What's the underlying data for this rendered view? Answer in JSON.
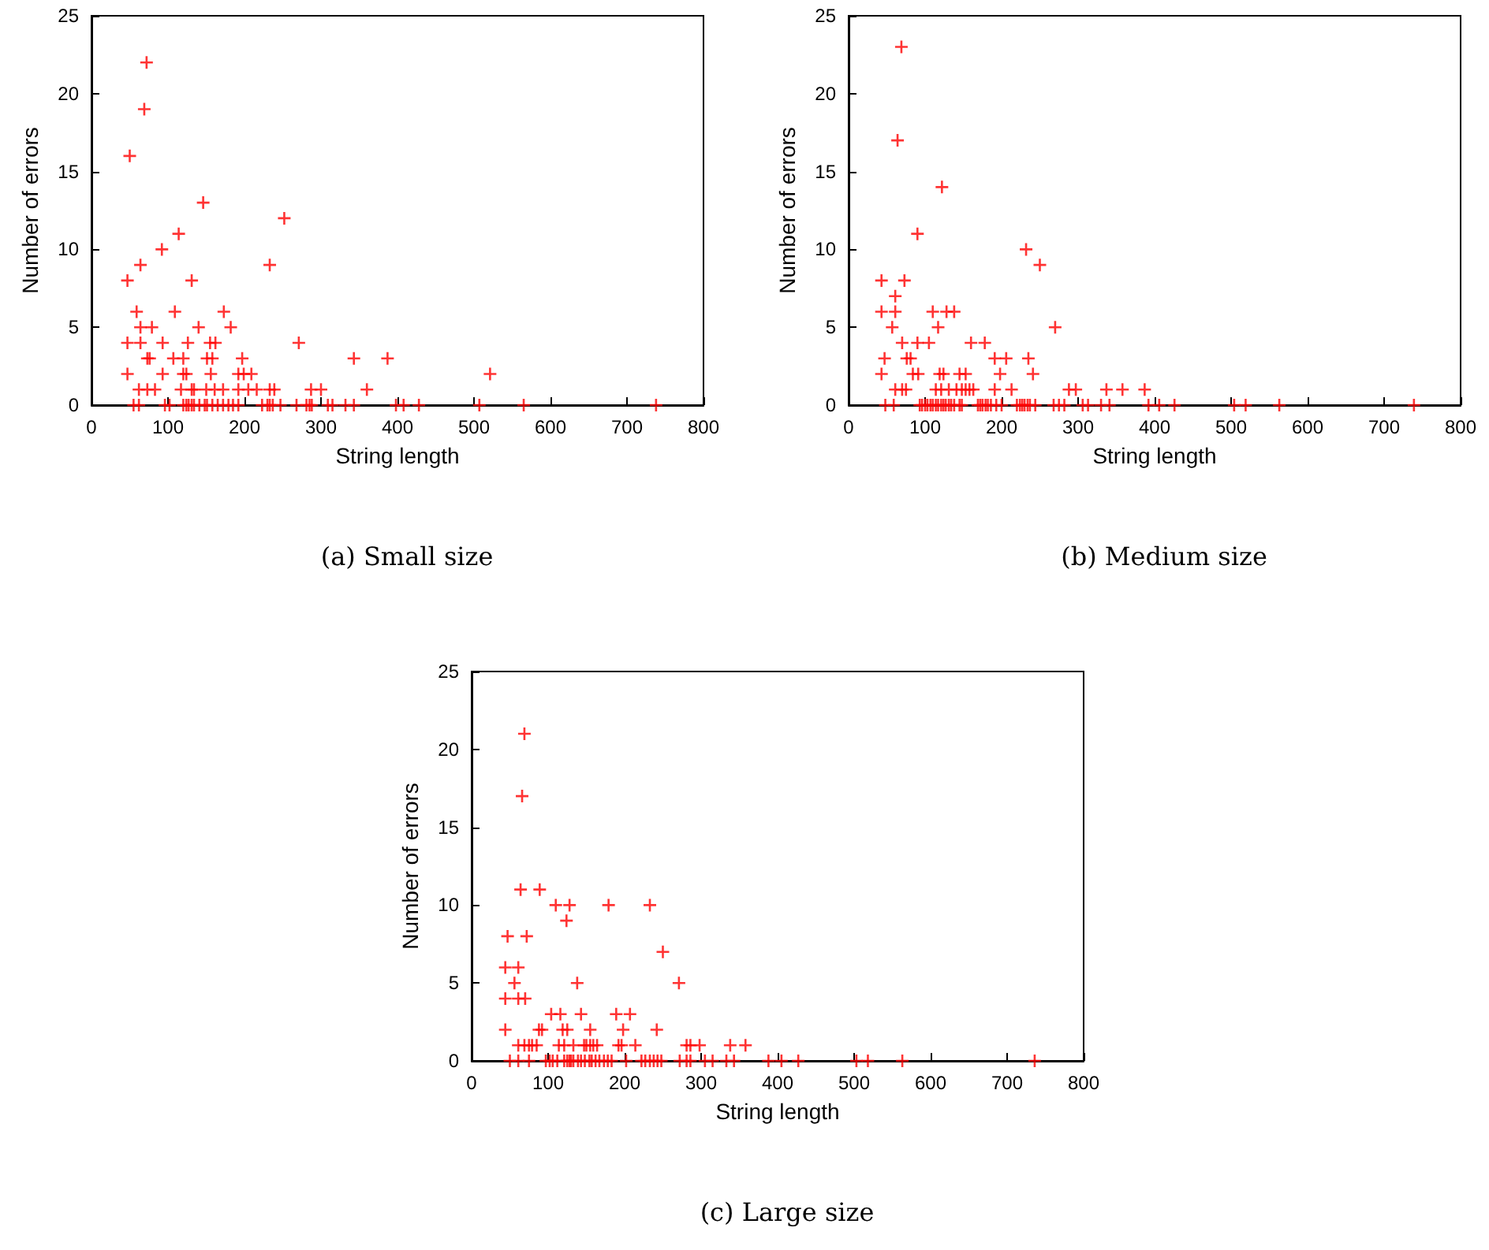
{
  "chart_data": [
    {
      "type": "scatter",
      "title": "(a) Small size",
      "xlabel": "String length",
      "ylabel": "Number of errors",
      "xlim": [
        0,
        800
      ],
      "xticks": [
        0,
        100,
        200,
        300,
        400,
        500,
        600,
        700,
        800
      ],
      "ylim": [
        0,
        25
      ],
      "yticks": [
        0,
        5,
        10,
        15,
        20,
        25
      ],
      "marker": "cross",
      "grid": false,
      "series": [
        {
          "color": "#ff0000",
          "x": [
            72,
            69,
            50,
            146,
            252,
            114,
            92,
            64,
            233,
            47,
            131,
            59,
            109,
            173,
            64,
            79,
            140,
            182,
            47,
            64,
            93,
            126,
            155,
            162,
            271,
            73,
            76,
            107,
            120,
            151,
            158,
            197,
            343,
            387,
            47,
            93,
            120,
            124,
            156,
            192,
            199,
            209,
            521,
            62,
            73,
            83,
            117,
            131,
            134,
            150,
            161,
            172,
            192,
            205,
            216,
            233,
            239,
            287,
            300,
            360,
            55,
            62,
            96,
            102,
            120,
            124,
            127,
            131,
            134,
            141,
            148,
            151,
            158,
            165,
            172,
            179,
            185,
            192,
            223,
            230,
            233,
            237,
            247,
            268,
            281,
            285,
            288,
            309,
            315,
            332,
            343,
            398,
            408,
            428,
            507,
            565,
            738
          ],
          "values": [
            22,
            19,
            16,
            13,
            12,
            11,
            10,
            9,
            9,
            8,
            8,
            6,
            6,
            6,
            5,
            5,
            5,
            5,
            4,
            4,
            4,
            4,
            4,
            4,
            4,
            3,
            3,
            3,
            3,
            3,
            3,
            3,
            3,
            3,
            2,
            2,
            2,
            2,
            2,
            2,
            2,
            2,
            2,
            1,
            1,
            1,
            1,
            1,
            1,
            1,
            1,
            1,
            1,
            1,
            1,
            1,
            1,
            1,
            1,
            1,
            0,
            0,
            0,
            0,
            0,
            0,
            0,
            0,
            0,
            0,
            0,
            0,
            0,
            0,
            0,
            0,
            0,
            0,
            0,
            0,
            0,
            0,
            0,
            0,
            0,
            0,
            0,
            0,
            0,
            0,
            0,
            0,
            0,
            0,
            0,
            0,
            0
          ]
        }
      ]
    },
    {
      "type": "scatter",
      "title": "(b) Medium size",
      "xlabel": "String length",
      "ylabel": "Number of errors",
      "xlim": [
        0,
        800
      ],
      "xticks": [
        0,
        100,
        200,
        300,
        400,
        500,
        600,
        700,
        800
      ],
      "ylim": [
        0,
        25
      ],
      "yticks": [
        0,
        5,
        10,
        15,
        20,
        25
      ],
      "marker": "cross",
      "grid": false,
      "series": [
        {
          "color": "#ff0000",
          "x": [
            69,
            64,
            122,
            90,
            232,
            250,
            43,
            73,
            61,
            43,
            61,
            110,
            128,
            138,
            57,
            117,
            270,
            70,
            90,
            105,
            160,
            178,
            47,
            76,
            81,
            191,
            206,
            235,
            43,
            84,
            91,
            119,
            124,
            145,
            153,
            198,
            241,
            61,
            70,
            75,
            114,
            121,
            131,
            141,
            148,
            153,
            158,
            163,
            191,
            213,
            288,
            297,
            337,
            358,
            387,
            48,
            59,
            93,
            96,
            100,
            103,
            107,
            110,
            114,
            117,
            121,
            124,
            127,
            131,
            134,
            138,
            145,
            148,
            169,
            172,
            175,
            179,
            182,
            186,
            193,
            200,
            220,
            224,
            227,
            230,
            234,
            237,
            244,
            268,
            275,
            282,
            306,
            313,
            330,
            341,
            392,
            406,
            426,
            504,
            519,
            563,
            739
          ],
          "values": [
            23,
            17,
            14,
            11,
            10,
            9,
            8,
            8,
            7,
            6,
            6,
            6,
            6,
            6,
            5,
            5,
            5,
            4,
            4,
            4,
            4,
            4,
            3,
            3,
            3,
            3,
            3,
            3,
            2,
            2,
            2,
            2,
            2,
            2,
            2,
            2,
            2,
            1,
            1,
            1,
            1,
            1,
            1,
            1,
            1,
            1,
            1,
            1,
            1,
            1,
            1,
            1,
            1,
            1,
            1,
            0,
            0,
            0,
            0,
            0,
            0,
            0,
            0,
            0,
            0,
            0,
            0,
            0,
            0,
            0,
            0,
            0,
            0,
            0,
            0,
            0,
            0,
            0,
            0,
            0,
            0,
            0,
            0,
            0,
            0,
            0,
            0,
            0,
            0,
            0,
            0,
            0,
            0,
            0,
            0,
            0,
            0,
            0,
            0,
            0,
            0,
            0
          ]
        }
      ]
    },
    {
      "type": "scatter",
      "title": "(c) Large size",
      "xlabel": "String length",
      "ylabel": "Number of errors",
      "xlim": [
        0,
        800
      ],
      "xticks": [
        0,
        100,
        200,
        300,
        400,
        500,
        600,
        700,
        800
      ],
      "ylim": [
        0,
        25
      ],
      "yticks": [
        0,
        5,
        10,
        15,
        20,
        25
      ],
      "marker": "cross",
      "grid": false,
      "series": [
        {
          "color": "#ff0000",
          "x": [
            69,
            66,
            64,
            89,
            110,
            128,
            179,
            233,
            124,
            47,
            72,
            250,
            44,
            61,
            56,
            138,
            271,
            44,
            61,
            70,
            104,
            116,
            143,
            189,
            207,
            44,
            88,
            92,
            119,
            125,
            155,
            198,
            242,
            61,
            69,
            75,
            79,
            85,
            114,
            121,
            133,
            147,
            150,
            155,
            159,
            164,
            192,
            196,
            214,
            281,
            286,
            298,
            338,
            358,
            50,
            61,
            75,
            97,
            102,
            106,
            112,
            121,
            125,
            128,
            130,
            133,
            139,
            143,
            148,
            154,
            157,
            162,
            167,
            173,
            178,
            183,
            202,
            222,
            227,
            233,
            238,
            243,
            248,
            272,
            281,
            286,
            305,
            315,
            333,
            343,
            388,
            405,
            427,
            503,
            518,
            563,
            736
          ],
          "values": [
            21,
            17,
            11,
            11,
            10,
            10,
            10,
            10,
            9,
            8,
            8,
            7,
            6,
            6,
            5,
            5,
            5,
            4,
            4,
            4,
            3,
            3,
            3,
            3,
            3,
            2,
            2,
            2,
            2,
            2,
            2,
            2,
            2,
            1,
            1,
            1,
            1,
            1,
            1,
            1,
            1,
            1,
            1,
            1,
            1,
            1,
            1,
            1,
            1,
            1,
            1,
            1,
            1,
            1,
            0,
            0,
            0,
            0,
            0,
            0,
            0,
            0,
            0,
            0,
            0,
            0,
            0,
            0,
            0,
            0,
            0,
            0,
            0,
            0,
            0,
            0,
            0,
            0,
            0,
            0,
            0,
            0,
            0,
            0,
            0,
            0,
            0,
            0,
            0,
            0,
            0,
            0,
            0,
            0,
            0,
            0,
            0
          ]
        }
      ]
    }
  ]
}
